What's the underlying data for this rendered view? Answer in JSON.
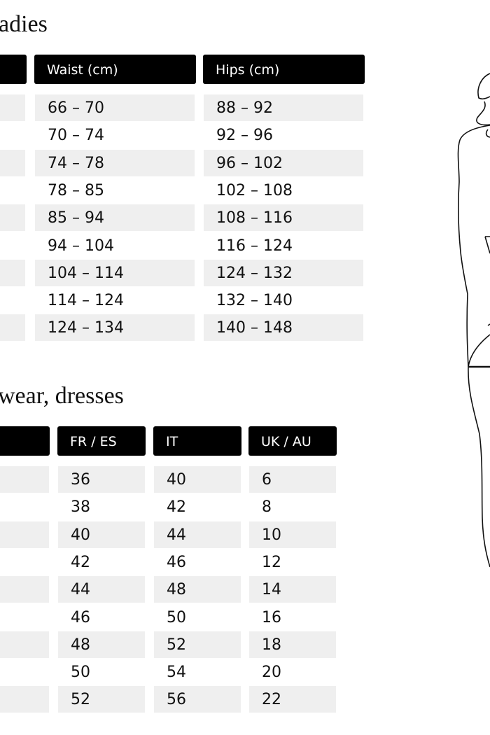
{
  "ladies": {
    "title": "adies",
    "headers": [
      "",
      "Waist (cm)",
      "Hips (cm)"
    ],
    "waist": [
      "66 – 70",
      "70 – 74",
      "74 – 78",
      "78 – 85",
      "85 – 94",
      "94 – 104",
      "104 – 114",
      "114 – 124",
      "124 – 134"
    ],
    "hips": [
      "88 – 92",
      "92 – 96",
      "96 – 102",
      "102 – 108",
      "108 – 116",
      "116 – 124",
      "124 – 132",
      "132 – 140",
      "140 – 148"
    ]
  },
  "outerwear": {
    "title": "wear, dresses",
    "headers": [
      "",
      "FR / ES",
      "IT",
      "UK / AU"
    ],
    "fr_es": [
      "36",
      "38",
      "40",
      "42",
      "44",
      "46",
      "48",
      "50",
      "52"
    ],
    "it": [
      "40",
      "42",
      "44",
      "46",
      "48",
      "50",
      "52",
      "54",
      "56"
    ],
    "uk_au": [
      "6",
      "8",
      "10",
      "12",
      "14",
      "16",
      "18",
      "20",
      "22"
    ]
  },
  "colors": {
    "header_bg": "#000000",
    "row_shade": "#efefef"
  }
}
